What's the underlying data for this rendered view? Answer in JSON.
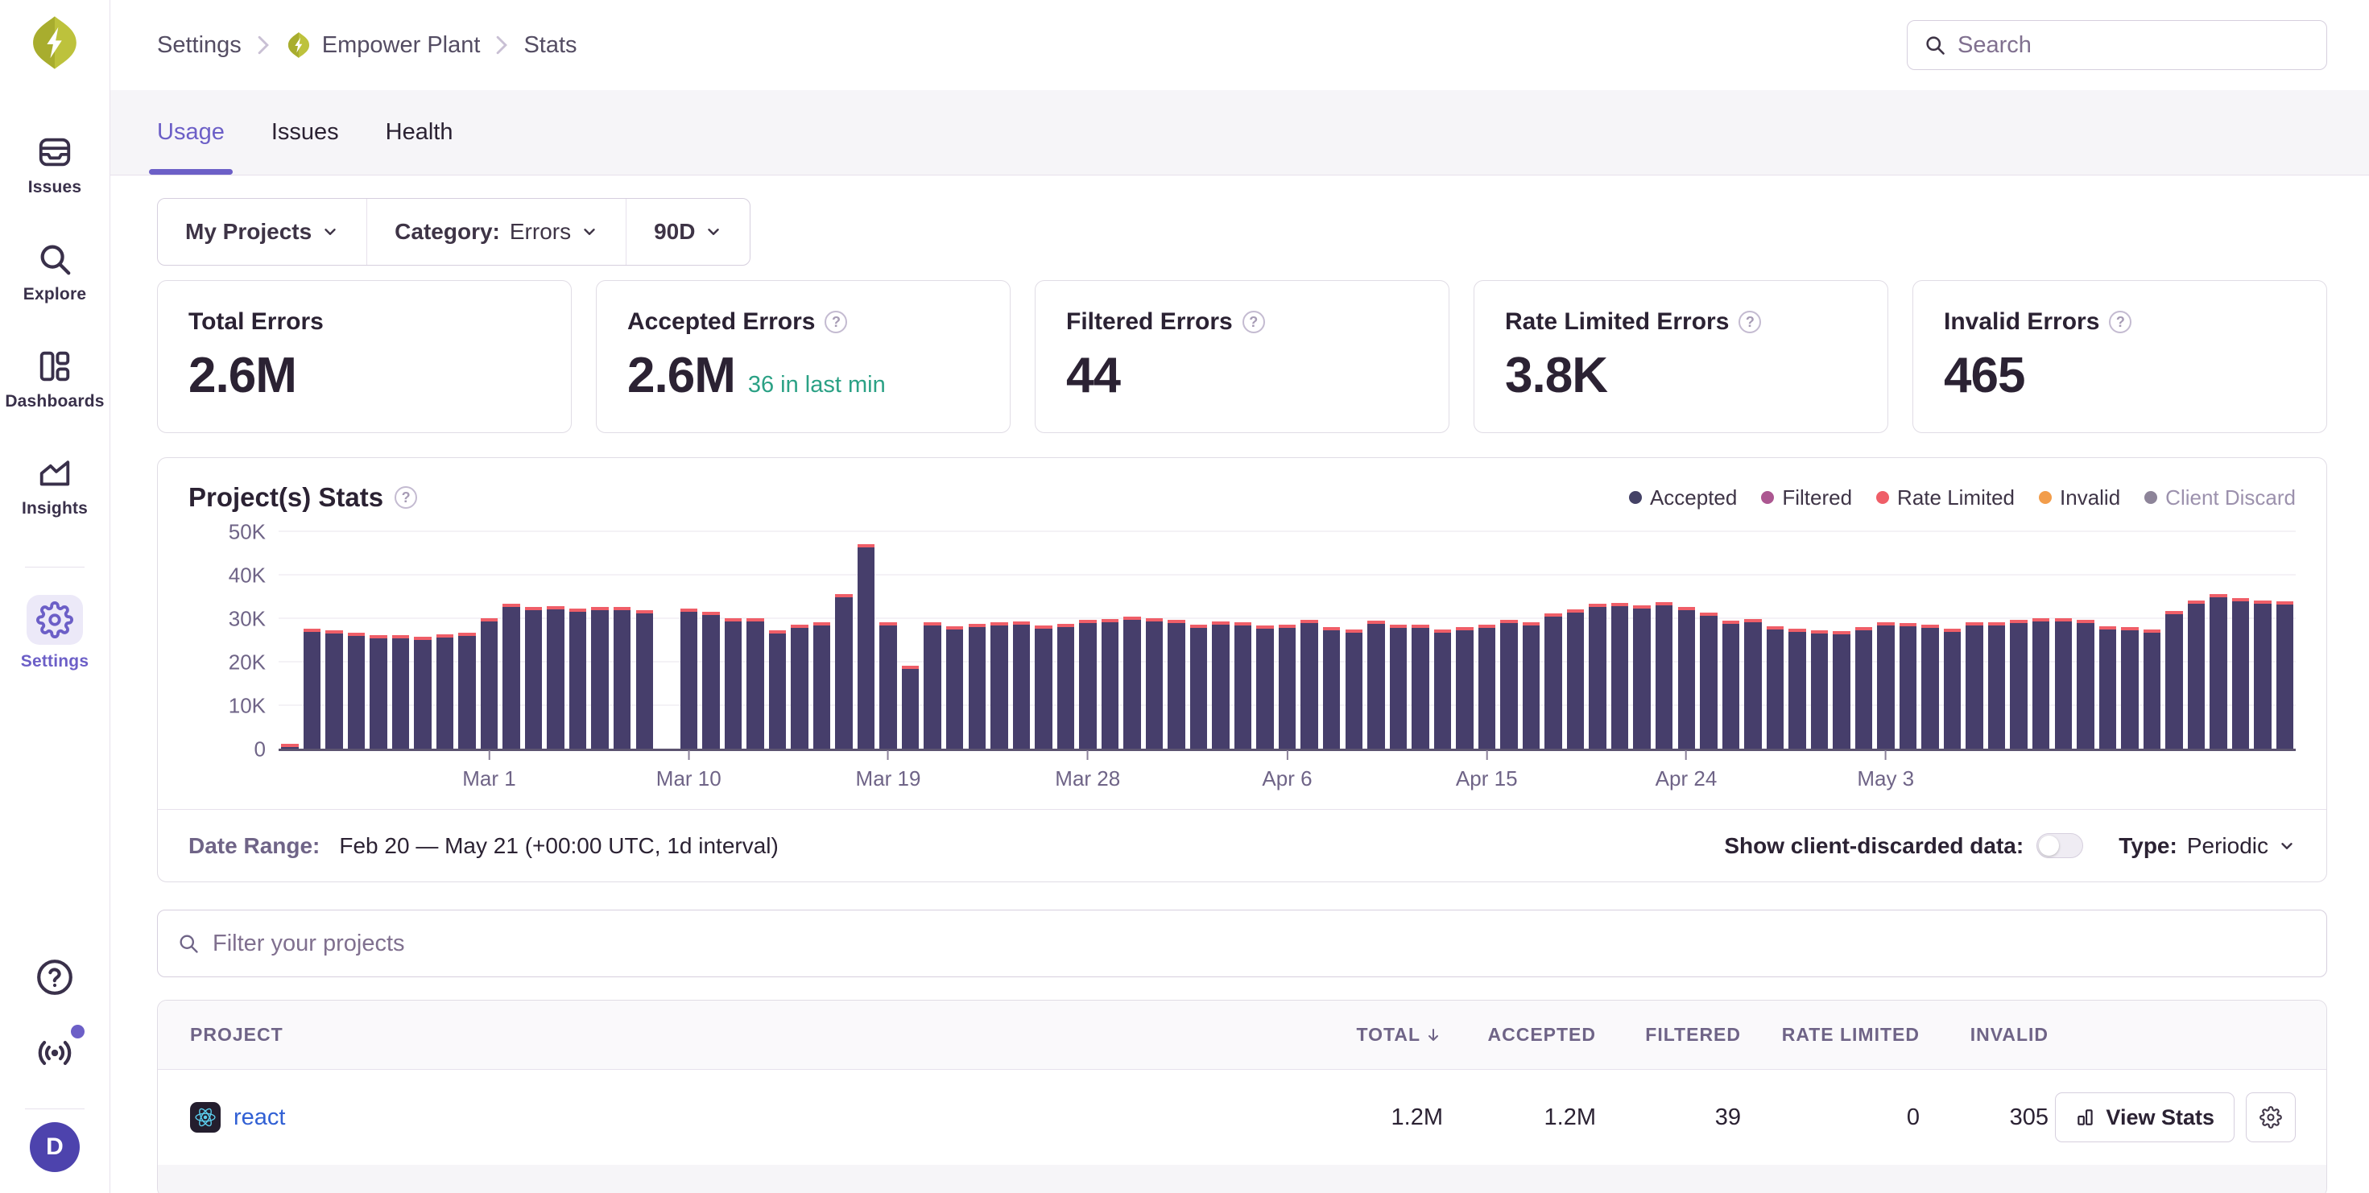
{
  "org": {
    "name": "Empower Plant",
    "avatar_letter": "D"
  },
  "sidebar": {
    "items": [
      {
        "label": "Issues"
      },
      {
        "label": "Explore"
      },
      {
        "label": "Dashboards"
      },
      {
        "label": "Insights"
      },
      {
        "label": "Settings",
        "active": true
      }
    ]
  },
  "breadcrumb": {
    "items": [
      "Settings",
      "Empower Plant",
      "Stats"
    ]
  },
  "search": {
    "placeholder": "Search"
  },
  "tabs": [
    {
      "label": "Usage",
      "active": true
    },
    {
      "label": "Issues",
      "active": false
    },
    {
      "label": "Health",
      "active": false
    }
  ],
  "filters": {
    "projects": "My Projects",
    "category_label": "Category:",
    "category_value": "Errors",
    "period": "90D"
  },
  "stat_cards": [
    {
      "label": "Total Errors",
      "value": "2.6M"
    },
    {
      "label": "Accepted Errors",
      "value": "2.6M",
      "sub": "36 in last min"
    },
    {
      "label": "Filtered Errors",
      "value": "44"
    },
    {
      "label": "Rate Limited Errors",
      "value": "3.8K"
    },
    {
      "label": "Invalid Errors",
      "value": "465"
    }
  ],
  "chart": {
    "title": "Project(s) Stats",
    "legend": [
      {
        "label": "Accepted",
        "color": "#444266",
        "enabled": true
      },
      {
        "label": "Filtered",
        "color": "#AC5791",
        "enabled": true
      },
      {
        "label": "Rate Limited",
        "color": "#EF5E68",
        "enabled": true
      },
      {
        "label": "Invalid",
        "color": "#F29D4B",
        "enabled": true
      },
      {
        "label": "Client Discard",
        "color": "#8D8499",
        "enabled": false
      }
    ]
  },
  "chart_data": {
    "type": "bar",
    "title": "Project(s) Stats",
    "xlabel": "",
    "ylabel": "",
    "ylim": [
      0,
      50000
    ],
    "y_ticks": [
      "0",
      "10K",
      "20K",
      "30K",
      "40K",
      "50K"
    ],
    "x_start": "Feb 20",
    "x_end": "May 21",
    "interval": "1d",
    "x_tick_labels": [
      "Mar 1",
      "Mar 10",
      "Mar 19",
      "Mar 28",
      "Apr 6",
      "Apr 15",
      "Apr 24",
      "May 3"
    ],
    "x_tick_indices": [
      9,
      18,
      27,
      36,
      45,
      54,
      63,
      72
    ],
    "grid": "horizontal-faint",
    "legend_position": "top-right",
    "stacked": true,
    "series": [
      {
        "name": "Accepted",
        "color": "#463E6B",
        "values": [
          500,
          27000,
          26600,
          26200,
          25600,
          25500,
          25200,
          25800,
          26100,
          29400,
          32800,
          32000,
          32300,
          31600,
          32000,
          32000,
          31300,
          0,
          31600,
          31000,
          29500,
          29400,
          26600,
          28000,
          28600,
          35000,
          46500,
          28600,
          18500,
          28500,
          27600,
          28100,
          28600,
          28700,
          27700,
          28200,
          29000,
          29300,
          29800,
          29400,
          29100,
          27900,
          28700,
          28500,
          27800,
          27900,
          29100,
          27500,
          26800,
          28800,
          27900,
          27900,
          26900,
          27400,
          28000,
          29000,
          28500,
          30500,
          31500,
          32800,
          33000,
          32500,
          33200,
          32000,
          30800,
          28900,
          29200,
          27600,
          27100,
          26600,
          26500,
          27400,
          28500,
          28400,
          28000,
          27000,
          28500,
          28500,
          29000,
          29400,
          29500,
          29000,
          27600,
          27500,
          26900,
          31200,
          33600,
          35000,
          34000,
          33500,
          33400
        ]
      },
      {
        "name": "Rate Limited",
        "color": "#EF5E68",
        "approx_daily_value": 450
      },
      {
        "name": "Invalid",
        "color": "#F29D4B",
        "approx_daily_value": 60
      }
    ]
  },
  "panel_footer": {
    "date_range_label": "Date Range:",
    "date_range_value": "Feb 20 — May 21 (+00:00 UTC, 1d interval)",
    "toggle_label": "Show client-discarded data:",
    "toggle_state": "off",
    "type_label": "Type:",
    "type_value": "Periodic"
  },
  "project_filter": {
    "placeholder": "Filter your projects"
  },
  "table": {
    "columns": [
      "PROJECT",
      "TOTAL",
      "ACCEPTED",
      "FILTERED",
      "RATE LIMITED",
      "INVALID"
    ],
    "sorted_by": "TOTAL",
    "rows": [
      {
        "project": "react",
        "total": "1.2M",
        "accepted": "1.2M",
        "filtered": "39",
        "rate_limited": "0",
        "invalid": "305",
        "action": "View Stats"
      }
    ]
  },
  "icons": {
    "search": "magnifier",
    "help": "question-circle",
    "settings": "gear",
    "broadcast": "radio-waves",
    "dropdown": "chevron-down",
    "sort": "arrow-down",
    "view_stats": "bar-chart",
    "project_react": "react-atom",
    "org_logo": "diamond-lightning-bolt"
  }
}
